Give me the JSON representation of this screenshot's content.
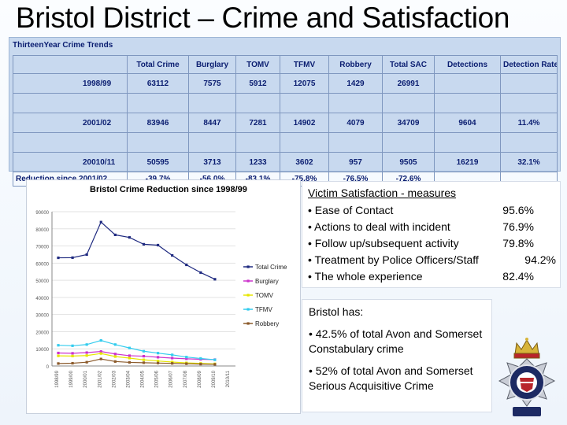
{
  "slide": {
    "title": "Bristol District – Crime and Satisfaction"
  },
  "table": {
    "title": "ThirteenYear Crime Trends",
    "headers": [
      "",
      "Total Crime",
      "Burglary",
      "TOMV",
      "TFMV",
      "Robbery",
      "Total SAC",
      "Detections",
      "Detection Rate"
    ],
    "rows": [
      [
        "1998/99",
        "63112",
        "7575",
        "5912",
        "12075",
        "1429",
        "26991",
        "",
        ""
      ],
      [
        "2001/02",
        "83946",
        "8447",
        "7281",
        "14902",
        "4079",
        "34709",
        "9604",
        "11.4%"
      ],
      [
        "20010/11",
        "50595",
        "3713",
        "1233",
        "3602",
        "957",
        "9505",
        "16219",
        "32.1%"
      ]
    ],
    "reduction": [
      "Reduction since 2001/02",
      "-39.7%",
      "-56.0%",
      "-83.1%",
      "-75.8%",
      "-76.5%",
      "-72.6%",
      "",
      ""
    ]
  },
  "chart_data": {
    "type": "line",
    "title": "Bristol Crime Reduction since 1998/99",
    "x": [
      "1998/99",
      "1999/00",
      "2000/01",
      "2001/02",
      "2002/03",
      "2003/04",
      "2004/05",
      "2005/06",
      "2006/07",
      "2007/08",
      "2008/09",
      "2009/10",
      "2010/11"
    ],
    "ylim": [
      0,
      90000
    ],
    "yticks": [
      "0",
      "10000",
      "20000",
      "30000",
      "40000",
      "50000",
      "60000",
      "70000",
      "80000",
      "90000"
    ],
    "series": [
      {
        "name": "Total Crime",
        "color": "#1f2a80",
        "values": [
          63112,
          63200,
          65000,
          83946,
          76500,
          75000,
          71000,
          70500,
          64500,
          59000,
          54500,
          50595,
          null
        ]
      },
      {
        "name": "Burglary",
        "color": "#cc33cc",
        "values": [
          7575,
          7400,
          7800,
          8447,
          7000,
          6000,
          5700,
          5100,
          4600,
          4200,
          3900,
          3713,
          null
        ]
      },
      {
        "name": "TOMV",
        "color": "#e6e600",
        "values": [
          5912,
          5800,
          6100,
          7281,
          5500,
          4600,
          3600,
          2900,
          2300,
          1800,
          1500,
          1233,
          null
        ]
      },
      {
        "name": "TFMV",
        "color": "#33ccee",
        "values": [
          12075,
          11800,
          12500,
          14902,
          12500,
          10500,
          8600,
          7500,
          6500,
          5200,
          4400,
          3602,
          null
        ]
      },
      {
        "name": "Robbery",
        "color": "#8b5a2b",
        "values": [
          1429,
          1600,
          2200,
          4079,
          2600,
          2100,
          1900,
          1700,
          1500,
          1300,
          1100,
          957,
          null
        ]
      }
    ]
  },
  "satisfaction": {
    "heading": "Victim Satisfaction - measures",
    "items": [
      {
        "label": "• Ease of Contact",
        "value": "95.6%"
      },
      {
        "label": "• Actions to deal with incident",
        "value": "76.9%"
      },
      {
        "label": "• Follow up/subsequent activity",
        "value": "79.8%"
      },
      {
        "label": "• Treatment by Police Officers/Staff",
        "value": "94.2%"
      },
      {
        "label": "• The whole experience",
        "value": "82.4%"
      }
    ]
  },
  "bristol_has": {
    "heading": "Bristol has:",
    "point1": "• 42.5% of total Avon and Somerset Constabulary crime",
    "point2": "• 52% of total Avon and Somerset Serious Acquisitive Crime"
  }
}
